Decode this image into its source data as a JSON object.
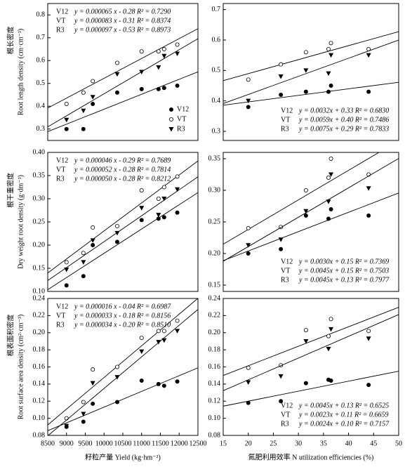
{
  "chart_data": [
    {
      "type": "scatter",
      "y_title_zh": "根长密度",
      "y_title": "Root length density (cm·cm⁻³)",
      "xlim": [
        8500,
        12500
      ],
      "ylim": [
        0.25,
        0.85
      ],
      "yticks": [
        0.3,
        0.4,
        0.5,
        0.6,
        0.7,
        0.8
      ],
      "equations_at": "top",
      "legend": "lower-right",
      "x": [
        9000,
        9450,
        9700,
        10350,
        11000,
        11450,
        11600,
        11950
      ],
      "series": [
        {
          "name": "V12",
          "marker": "filled-circle",
          "values": [
            0.3,
            0.3,
            0.41,
            0.46,
            0.475,
            0.475,
            0.48,
            0.49
          ],
          "equation": "y = 0.000065 x - 0.28 R² = 0.7290"
        },
        {
          "name": "VT",
          "marker": "open-circle",
          "values": [
            0.41,
            0.46,
            0.51,
            0.59,
            0.64,
            0.64,
            0.65,
            0.67
          ],
          "equation": "y = 0.000083 x - 0.31 R² = 0.8374"
        },
        {
          "name": "R3",
          "marker": "triangle",
          "values": [
            0.34,
            0.38,
            0.44,
            0.54,
            0.55,
            0.57,
            0.62,
            0.63
          ],
          "equation": "y = 0.000097 x - 0.53 R² = 0.8973"
        }
      ]
    },
    {
      "type": "scatter",
      "xlim": [
        15,
        50
      ],
      "ylim": [
        0.27,
        0.72
      ],
      "yticks": [
        0.3,
        0.4,
        0.5,
        0.6,
        0.7
      ],
      "equations_at": "bottom",
      "x": [
        20,
        26.5,
        31.5,
        36,
        36.5,
        44
      ],
      "series": [
        {
          "name": "V12",
          "marker": "filled-circle",
          "values": [
            0.38,
            0.42,
            0.43,
            0.43,
            0.45,
            0.43
          ],
          "equation": "y = 0.0032x + 0.33 R² = 0.6830"
        },
        {
          "name": "VT",
          "marker": "open-circle",
          "values": [
            0.47,
            0.52,
            0.56,
            0.57,
            0.59,
            0.57
          ],
          "equation": "y = 0.0059x + 0.40 R² = 0.7486"
        },
        {
          "name": "R3",
          "marker": "triangle",
          "values": [
            0.4,
            0.48,
            0.5,
            0.49,
            0.55,
            0.55
          ],
          "equation": "y = 0.0075x + 0.29 R² = 0.7833"
        }
      ]
    },
    {
      "type": "scatter",
      "y_title_zh": "根干重密度",
      "y_title": "Dry weight root density (g·dm⁻³)",
      "xlim": [
        8500,
        12500
      ],
      "ylim": [
        0.1,
        0.4
      ],
      "yticks": [
        {
          "value": 0.1,
          "label": "0.10"
        },
        0.15,
        {
          "value": 0.2,
          "label": "0.20"
        },
        0.25,
        {
          "value": 0.3,
          "label": "0.30"
        },
        0.35,
        {
          "value": 0.4,
          "label": "0.40"
        }
      ],
      "equations_at": "top",
      "x": [
        9000,
        9450,
        9700,
        10350,
        11000,
        11450,
        11600,
        11950
      ],
      "series": [
        {
          "name": "V12",
          "marker": "filled-circle",
          "values": [
            0.113,
            0.133,
            0.2,
            0.207,
            0.254,
            0.257,
            0.26,
            0.27
          ],
          "equation": "y = 0.000046 x - 0.29 R² = 0.7689"
        },
        {
          "name": "VT",
          "marker": "open-circle",
          "values": [
            0.163,
            0.183,
            0.238,
            0.241,
            0.318,
            0.3,
            0.325,
            0.348
          ],
          "equation": "y = 0.000052 x - 0.28 R² = 0.7814"
        },
        {
          "name": "R3",
          "marker": "triangle",
          "values": [
            0.147,
            0.163,
            0.21,
            0.226,
            0.28,
            0.265,
            0.3,
            0.32
          ],
          "equation": "y = 0.000050 x - 0.28 R² = 0.8212"
        }
      ]
    },
    {
      "type": "scatter",
      "xlim": [
        15,
        50
      ],
      "ylim": [
        0.14,
        0.36
      ],
      "yticks": [
        0.15,
        {
          "value": 0.2,
          "label": "0.20"
        },
        0.25,
        {
          "value": 0.3,
          "label": "0.30"
        },
        0.35
      ],
      "equations_at": "bottom",
      "x": [
        20,
        26.5,
        31.5,
        36,
        36.5,
        44
      ],
      "series": [
        {
          "name": "V12",
          "marker": "filled-circle",
          "values": [
            0.2,
            0.207,
            0.26,
            0.255,
            0.27,
            0.26
          ],
          "equation": "y = 0.0030x + 0.15 R² = 0.7369"
        },
        {
          "name": "VT",
          "marker": "open-circle",
          "values": [
            0.24,
            0.242,
            0.3,
            0.32,
            0.35,
            0.325
          ],
          "equation": "y = 0.0045x + 0.15 R² = 0.7503"
        },
        {
          "name": "R3",
          "marker": "triangle",
          "values": [
            0.213,
            0.222,
            0.267,
            0.282,
            0.325,
            0.303
          ],
          "equation": "y = 0.0045x + 0.13 R² = 0.7977"
        }
      ]
    },
    {
      "type": "scatter",
      "y_title_zh": "根表面积密度",
      "y_title": "Root surface area density (cm²·cm⁻³)",
      "x_title": "籽粒产量 Yield (kg·hm⁻²)",
      "xlim": [
        8500,
        12500
      ],
      "xticks": [
        8500,
        9000,
        9500,
        10000,
        10500,
        11000,
        11500,
        12000,
        12500
      ],
      "ylim": [
        0.08,
        0.24
      ],
      "yticks": [
        0.08,
        {
          "value": 0.1,
          "label": "0.10"
        },
        0.12,
        0.14,
        0.16,
        0.18,
        {
          "value": 0.2,
          "label": "0.20"
        },
        0.22,
        0.24
      ],
      "equations_at": "top",
      "x": [
        9000,
        9450,
        9700,
        10350,
        11000,
        11450,
        11600,
        11950
      ],
      "series": [
        {
          "name": "V12",
          "marker": "filled-circle",
          "values": [
            0.09,
            0.096,
            0.117,
            0.119,
            0.144,
            0.14,
            0.138,
            0.143
          ],
          "equation": "y = 0.000016 x - 0.04 R² = 0.6987"
        },
        {
          "name": "VT",
          "marker": "open-circle",
          "values": [
            0.1,
            0.119,
            0.157,
            0.16,
            0.194,
            0.202,
            0.202,
            0.214
          ],
          "equation": "y = 0.000033 x - 0.18 R² = 0.8156"
        },
        {
          "name": "R3",
          "marker": "triangle",
          "values": [
            0.091,
            0.105,
            0.141,
            0.148,
            0.178,
            0.189,
            0.191,
            0.202
          ],
          "equation": "y = 0.000034 x - 0.20 R² = 0.8510"
        }
      ]
    },
    {
      "type": "scatter",
      "x_title": "氮肥利用效率 N utilization efficiencies (%)",
      "xlim": [
        15,
        50
      ],
      "xticks": [
        15,
        20,
        25,
        30,
        35,
        40,
        45,
        50
      ],
      "ylim": [
        0.08,
        0.24
      ],
      "yticks": [
        0.08,
        {
          "value": 0.1,
          "label": "0.10"
        },
        0.12,
        0.14,
        0.16,
        0.18,
        {
          "value": 0.2,
          "label": "0.20"
        },
        0.22,
        0.24
      ],
      "equations_at": "bottom",
      "x": [
        20,
        26.5,
        31.5,
        36,
        36.5,
        44
      ],
      "series": [
        {
          "name": "V12",
          "marker": "filled-circle",
          "values": [
            0.118,
            0.12,
            0.141,
            0.145,
            0.144,
            0.139
          ],
          "equation": "y = 0.0045x + 0.13 R² = 0.6525"
        },
        {
          "name": "VT",
          "marker": "open-circle",
          "values": [
            0.159,
            0.162,
            0.203,
            0.196,
            0.216,
            0.202
          ],
          "equation": "y = 0.0023x + 0.11 R² = 0.6659"
        },
        {
          "name": "R3",
          "marker": "triangle",
          "values": [
            0.142,
            0.149,
            0.19,
            0.181,
            0.204,
            0.193
          ],
          "equation": "y = 0.0024x + 0.10 R² = 0.7157"
        }
      ]
    }
  ]
}
